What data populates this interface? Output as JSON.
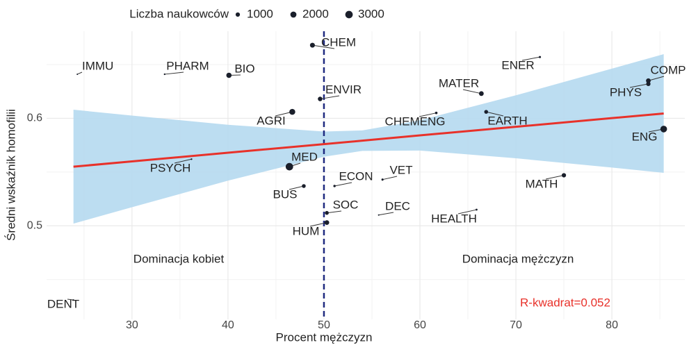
{
  "chart_data": {
    "type": "scatter",
    "xlabel": "Procent mężczyzn",
    "ylabel": "Średni wskaźnik homofilii",
    "legend_title": "Liczba naukowców",
    "legend_sizes": [
      1000,
      2000,
      3000
    ],
    "xlim": [
      21.1,
      87.6
    ],
    "ylim": [
      0.413,
      0.681
    ],
    "xticks": [
      30,
      40,
      50,
      60,
      70,
      80
    ],
    "yticks": [
      0.5,
      0.6
    ],
    "xminorticks": [
      25,
      35,
      45,
      55,
      65,
      75,
      85
    ],
    "yminorticks": [
      0.45,
      0.55,
      0.65
    ],
    "grid": true,
    "point_color": "#1a1f2b",
    "points": {
      "labels": [
        "IMMU",
        "PHARM",
        "BIO",
        "CHEM",
        "ENVIR",
        "AGRI",
        "MED",
        "PSYCH",
        "BUS",
        "ECON",
        "VET",
        "SOC",
        "HUM",
        "DEC",
        "HEALTH",
        "MATH",
        "ENER",
        "MATER",
        "CHEMENG",
        "EARTH",
        "PHYS",
        "COMP",
        "ENG",
        "DENT"
      ],
      "x": [
        24.3,
        33.4,
        40.1,
        48.8,
        49.6,
        46.7,
        46.4,
        36.2,
        47.9,
        51.1,
        56.1,
        50.3,
        50.3,
        55.7,
        65.9,
        75.0,
        72.5,
        66.4,
        61.7,
        66.9,
        83.8,
        83.8,
        85.4,
        23.9
      ],
      "y": [
        0.641,
        0.641,
        0.64,
        0.668,
        0.618,
        0.606,
        0.555,
        0.562,
        0.537,
        0.537,
        0.543,
        0.512,
        0.503,
        0.51,
        0.515,
        0.547,
        0.657,
        0.623,
        0.605,
        0.606,
        0.632,
        0.635,
        0.59,
        0.431
      ],
      "sizes": [
        100,
        150,
        1500,
        1300,
        1100,
        1900,
        3000,
        150,
        800,
        300,
        250,
        800,
        1200,
        50,
        200,
        1000,
        250,
        1200,
        350,
        800,
        1000,
        1200,
        2400,
        50
      ]
    },
    "fit": {
      "color": "#e8312a",
      "band_color": "#b5d9f0",
      "x": [
        23.9,
        30,
        40,
        50,
        54,
        60,
        70,
        80,
        85.4
      ],
      "values": [
        0.555,
        0.5599,
        0.568,
        0.576,
        0.5792,
        0.5841,
        0.5921,
        0.6002,
        0.6045
      ],
      "upper": [
        0.608,
        0.6025,
        0.594,
        0.5877,
        0.5887,
        0.5982,
        0.6214,
        0.6462,
        0.6597
      ],
      "lower": [
        0.502,
        0.5173,
        0.542,
        0.5643,
        0.5697,
        0.57,
        0.5628,
        0.5542,
        0.5493
      ]
    },
    "vline": {
      "value": 50,
      "color": "#1f2a80"
    },
    "annotations": [
      "Dominacja kobiet",
      "Dominacja mężczyzn",
      "R-kwadrat=0.052"
    ],
    "annotation_colors": [
      "#222",
      "#222",
      "#e8312a"
    ]
  }
}
